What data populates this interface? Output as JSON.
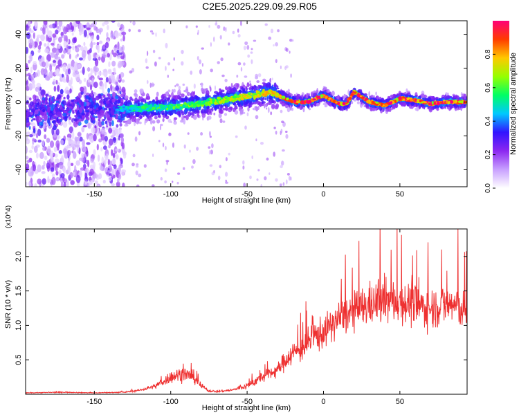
{
  "title": "C2E5.2025.229.09.29.R05",
  "chart_data": [
    {
      "type": "heatmap",
      "title": "C2E5.2025.229.09.29.R05",
      "xlabel": "Height of straight line (km)",
      "ylabel": "Frequency (Hz)",
      "xlim": [
        -195,
        94
      ],
      "ylim": [
        -50,
        48
      ],
      "xticks": [
        -150,
        -100,
        -50,
        0,
        50
      ],
      "yticks": [
        -40,
        -20,
        0,
        20,
        40
      ],
      "colorbar": {
        "label": "Normalized spectral amplitude",
        "range": [
          0,
          1
        ],
        "ticks": [
          "0.0",
          "0.2",
          "0.4",
          "0.6",
          "0.8"
        ],
        "colors": [
          "#ffffff",
          "#c8a0ff",
          "#8c28f0",
          "#3214ff",
          "#00c8ff",
          "#00ff64",
          "#96ff00",
          "#ffc800",
          "#ff3c00",
          "#ff0078"
        ]
      },
      "ridge": {
        "x": [
          -195,
          -150,
          -130,
          -100,
          -80,
          -60,
          -45,
          -35,
          -30,
          -20,
          -10,
          0,
          10,
          15,
          20,
          30,
          40,
          50,
          60,
          70,
          80,
          94
        ],
        "y": [
          -6,
          -3,
          -4,
          -3,
          -1,
          2,
          4,
          6,
          4,
          0,
          0,
          4,
          -1,
          -1,
          6,
          0,
          -2,
          2,
          1,
          -1,
          0,
          0
        ]
      }
    },
    {
      "type": "line",
      "xlabel": "Height of straight line (km)",
      "ylabel": "SNR (10 * v/v)",
      "y_multiplier": "(x10^4)",
      "xlim": [
        -195,
        94
      ],
      "ylim": [
        0,
        2.4
      ],
      "xticks": [
        -150,
        -100,
        -50,
        0,
        50
      ],
      "yticks": [
        "0.5",
        "1.0",
        "1.5",
        "2.0"
      ],
      "series": [
        {
          "color": "#ee3030",
          "x": [
            -195,
            -170,
            -150,
            -130,
            -120,
            -110,
            -100,
            -92,
            -85,
            -80,
            -75,
            -70,
            -60,
            -50,
            -40,
            -30,
            -25,
            -20,
            -15,
            -10,
            -5,
            0,
            10,
            20,
            30,
            40,
            50,
            60,
            70,
            80,
            85,
            90,
            94
          ],
          "y": [
            0.02,
            0.03,
            0.02,
            0.03,
            0.06,
            0.12,
            0.25,
            0.3,
            0.25,
            0.12,
            0.05,
            0.04,
            0.06,
            0.12,
            0.25,
            0.35,
            0.5,
            0.6,
            0.65,
            0.75,
            0.85,
            0.9,
            1.1,
            1.2,
            1.3,
            1.35,
            1.35,
            1.3,
            1.25,
            1.3,
            1.3,
            1.25,
            1.15
          ]
        }
      ]
    }
  ]
}
